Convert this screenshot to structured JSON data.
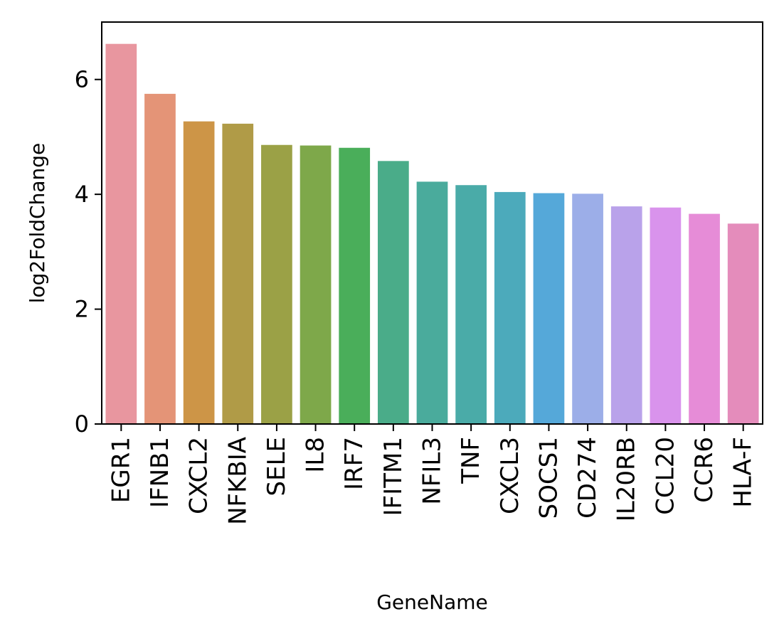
{
  "chart_data": {
    "type": "bar",
    "xlabel": "GeneName",
    "ylabel": "log2FoldChange",
    "ylim": [
      0,
      7
    ],
    "yticks": [
      0,
      2,
      4,
      6
    ],
    "grid": false,
    "categories": [
      "EGR1",
      "IFNB1",
      "CXCL2",
      "NFKBIA",
      "SELE",
      "IL8",
      "IRF7",
      "IFITM1",
      "NFIL3",
      "TNF",
      "CXCL3",
      "SOCS1",
      "CD274",
      "IL20RB",
      "CCL20",
      "CCR6",
      "HLA-F"
    ],
    "values": [
      6.62,
      5.75,
      5.27,
      5.23,
      4.86,
      4.85,
      4.81,
      4.58,
      4.22,
      4.16,
      4.04,
      4.02,
      4.01,
      3.79,
      3.77,
      3.66,
      3.49
    ],
    "colors": [
      "#e8969f",
      "#e49477",
      "#cd9547",
      "#b09b47",
      "#9ba146",
      "#7ea84a",
      "#4aae5a",
      "#4aac89",
      "#4aab9c",
      "#4aaba8",
      "#4caabb",
      "#55a8d9",
      "#9caee8",
      "#b9a2ea",
      "#d993ec",
      "#e68cd7",
      "#e48cbb"
    ]
  }
}
